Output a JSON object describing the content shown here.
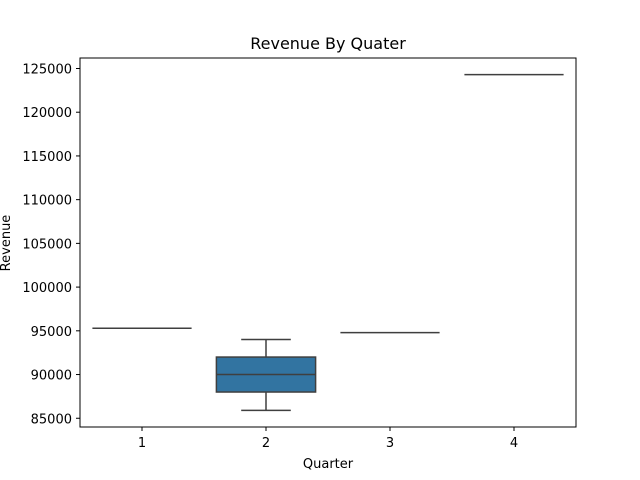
{
  "chart_data": {
    "type": "box",
    "title": "Revenue By Quater",
    "xlabel": "Quarter",
    "ylabel": "Revenue",
    "categories": [
      "1",
      "2",
      "3",
      "4"
    ],
    "ylim": [
      84000,
      126200
    ],
    "yticks": [
      85000,
      90000,
      95000,
      100000,
      105000,
      110000,
      115000,
      120000,
      125000
    ],
    "ytick_labels": [
      "85000",
      "90000",
      "95000",
      "100000",
      "105000",
      "110000",
      "115000",
      "120000",
      "125000"
    ],
    "boxes": [
      {
        "category": "1",
        "min": 95300,
        "q1": 95300,
        "median": 95300,
        "q3": 95300,
        "max": 95300
      },
      {
        "category": "2",
        "min": 85900,
        "q1": 88000,
        "median": 90000,
        "q3": 92000,
        "max": 94000
      },
      {
        "category": "3",
        "min": 94800,
        "q1": 94800,
        "median": 94800,
        "q3": 94800,
        "max": 94800
      },
      {
        "category": "4",
        "min": 124300,
        "q1": 124300,
        "median": 124300,
        "q3": 124300,
        "max": 124300
      }
    ],
    "box_color": "#3274a1",
    "line_color": "#3f3f3f",
    "grid": false,
    "legend": "none"
  }
}
